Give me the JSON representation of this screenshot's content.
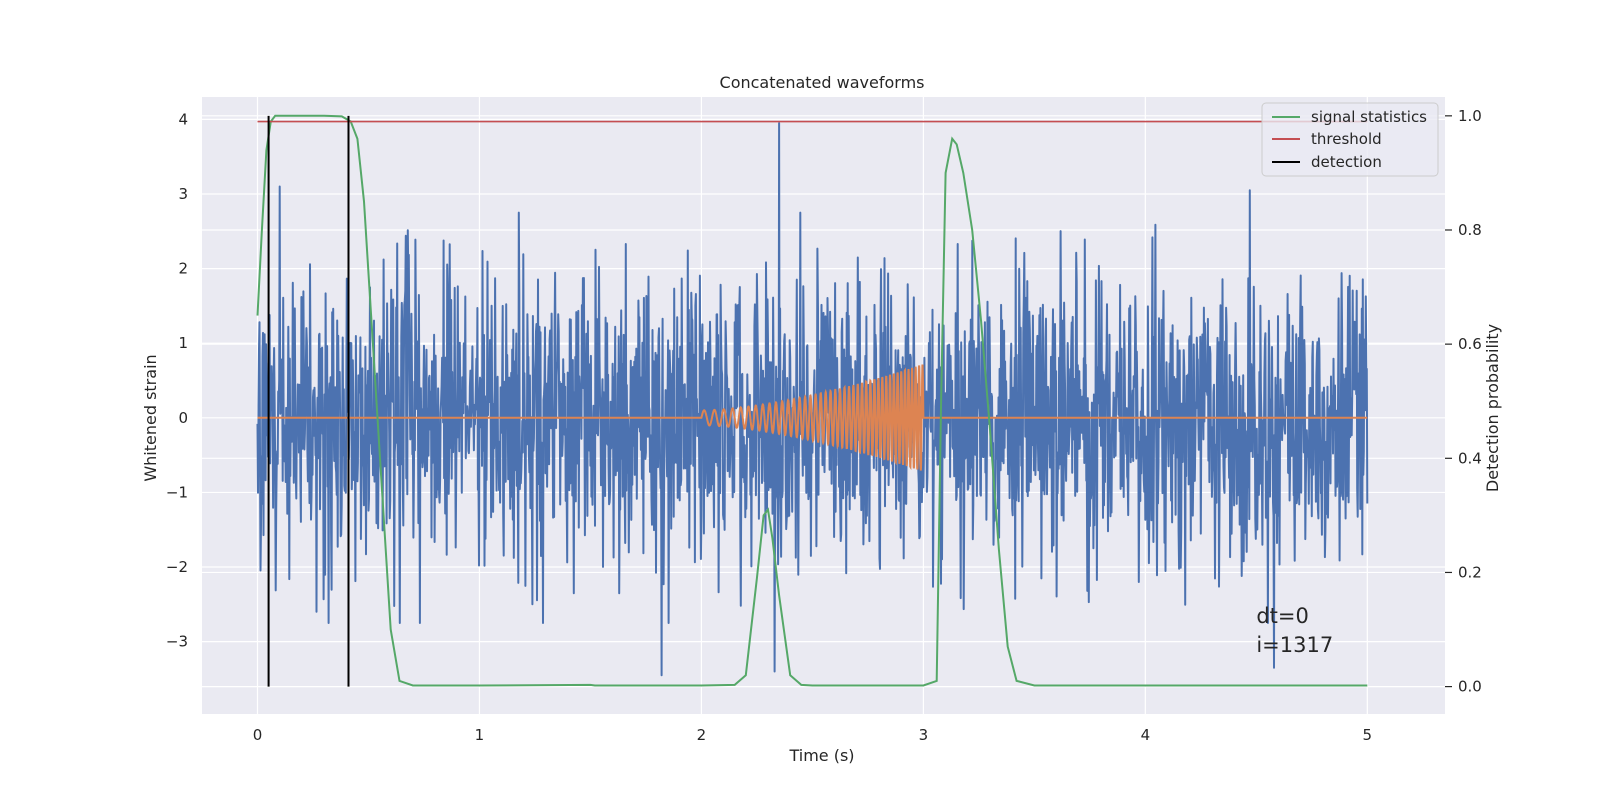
{
  "chart_data": {
    "type": "line",
    "title": "Concatenated waveforms",
    "xlabel": "Time (s)",
    "ylabel": "Whitened strain",
    "y2label": "Detection probability",
    "xlim": [
      -0.25,
      5.35
    ],
    "ylim": [
      -3.97,
      4.3
    ],
    "y2lim": [
      -0.048,
      1.033
    ],
    "xticks": [
      0,
      1,
      2,
      3,
      4,
      5
    ],
    "xtick_labels": [
      "0",
      "1",
      "2",
      "3",
      "4",
      "5"
    ],
    "yticks": [
      4,
      3,
      2,
      1,
      0,
      -1,
      -2,
      -3
    ],
    "ytick_labels": [
      "4",
      "3",
      "2",
      "1",
      "0",
      "−1",
      "−2",
      "−3"
    ],
    "y2ticks": [
      1.0,
      0.8,
      0.6,
      0.4,
      0.2,
      0.0
    ],
    "y2tick_labels": [
      "1.0",
      "0.8",
      "0.6",
      "0.4",
      "0.2",
      "0.0"
    ],
    "grid": true,
    "legend_position": "upper right",
    "background": "#eaeaf2",
    "strain": {
      "color": "#4c72b0",
      "x_range": [
        0,
        5
      ],
      "typical_amplitude": 1.0,
      "spikes": [
        {
          "x": 0.1,
          "y": 3.1
        },
        {
          "x": 2.35,
          "y": 3.95
        },
        {
          "x": 1.82,
          "y": -3.45
        },
        {
          "x": 2.33,
          "y": -3.4
        },
        {
          "x": 4.47,
          "y": -3.6
        },
        {
          "x": 4.47,
          "y": 3.05
        },
        {
          "x": 4.58,
          "y": -3.35
        },
        {
          "x": 0.32,
          "y": -2.75
        }
      ]
    },
    "injection": {
      "color": "#dd8452",
      "x_start": 2.0,
      "x_end": 3.0,
      "start_amplitude": 0.1,
      "end_amplitude": 0.72,
      "start_frequency_hz": 20,
      "end_frequency_hz": 65
    },
    "series": [
      {
        "name": "signal statistics",
        "color": "#55a868",
        "x": [
          0.0,
          0.02,
          0.04,
          0.06,
          0.08,
          0.1,
          0.2,
          0.3,
          0.38,
          0.42,
          0.45,
          0.48,
          0.52,
          0.56,
          0.6,
          0.64,
          0.7,
          1.0,
          1.5,
          1.52,
          2.0,
          2.15,
          2.2,
          2.25,
          2.28,
          2.3,
          2.32,
          2.35,
          2.4,
          2.45,
          2.5,
          2.55,
          3.0,
          3.06,
          3.08,
          3.1,
          3.13,
          3.15,
          3.18,
          3.22,
          3.26,
          3.3,
          3.34,
          3.38,
          3.42,
          3.5,
          4.0,
          4.5,
          5.0
        ],
        "y": [
          0.65,
          0.8,
          0.94,
          0.99,
          1.0,
          1.0,
          1.0,
          1.0,
          0.999,
          0.99,
          0.96,
          0.85,
          0.6,
          0.35,
          0.1,
          0.01,
          0.002,
          0.002,
          0.003,
          0.002,
          0.002,
          0.003,
          0.02,
          0.19,
          0.3,
          0.31,
          0.26,
          0.16,
          0.02,
          0.003,
          0.002,
          0.002,
          0.002,
          0.01,
          0.5,
          0.9,
          0.96,
          0.95,
          0.9,
          0.8,
          0.64,
          0.45,
          0.24,
          0.07,
          0.01,
          0.002,
          0.002,
          0.002,
          0.002
        ]
      },
      {
        "name": "threshold",
        "color": "#c44e52",
        "x": [
          0,
          5
        ],
        "y": [
          0.99,
          0.99
        ]
      },
      {
        "name": "detection",
        "color": "#000000",
        "x": [
          0.05,
          0.41
        ],
        "y": [
          0.0,
          1.0
        ]
      }
    ],
    "annotation": {
      "line1": "dt=0",
      "line2": "i=1317",
      "x": 4.5,
      "y": -2.75
    }
  }
}
